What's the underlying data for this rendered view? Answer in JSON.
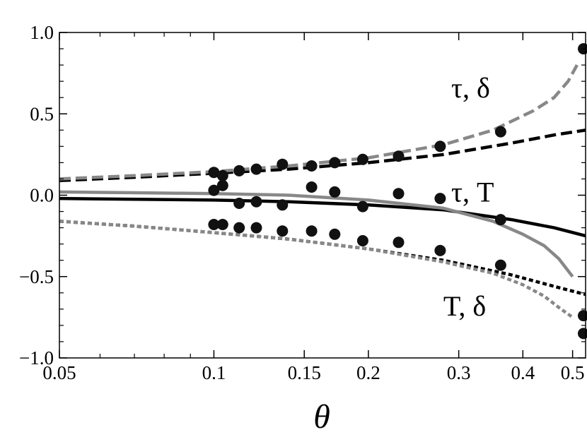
{
  "chart_data": {
    "type": "line",
    "xlabel": "θ",
    "ylabel": "",
    "xscale": "log",
    "xlim": [
      0.05,
      0.53
    ],
    "ylim": [
      -1.0,
      1.0
    ],
    "grid": false,
    "legend": "none",
    "x_ticks": [
      {
        "value": 0.05,
        "label": "0.05"
      },
      {
        "value": 0.1,
        "label": "0.1"
      },
      {
        "value": 0.15,
        "label": "0.15"
      },
      {
        "value": 0.2,
        "label": "0.2"
      },
      {
        "value": 0.3,
        "label": "0.3"
      },
      {
        "value": 0.4,
        "label": "0.4"
      },
      {
        "value": 0.5,
        "label": "0.5"
      }
    ],
    "y_ticks": [
      {
        "value": 1.0,
        "label": "1.0"
      },
      {
        "value": 0.5,
        "label": "0.5"
      },
      {
        "value": 0.0,
        "label": "0.0"
      },
      {
        "value": -0.5,
        "label": "−0.5"
      },
      {
        "value": -1.0,
        "label": "−1.0"
      }
    ],
    "annotations": [
      {
        "text": "τ, δ",
        "x": 0.29,
        "y": 0.6
      },
      {
        "text": "τ, T",
        "x": 0.29,
        "y": -0.04
      },
      {
        "text": "T, δ",
        "x": 0.28,
        "y": -0.74
      }
    ],
    "series": [
      {
        "group": "τ, δ",
        "style": "dashed",
        "color": "#000000",
        "x": [
          0.05,
          0.07,
          0.1,
          0.14,
          0.2,
          0.28,
          0.38,
          0.46,
          0.53
        ],
        "y": [
          0.09,
          0.11,
          0.135,
          0.16,
          0.2,
          0.25,
          0.32,
          0.37,
          0.4
        ]
      },
      {
        "group": "τ, δ",
        "style": "dashed",
        "color": "#888888",
        "x": [
          0.05,
          0.07,
          0.1,
          0.14,
          0.2,
          0.28,
          0.35,
          0.42,
          0.46,
          0.49,
          0.51
        ],
        "y": [
          0.1,
          0.12,
          0.145,
          0.18,
          0.23,
          0.31,
          0.4,
          0.52,
          0.6,
          0.7,
          0.8
        ]
      },
      {
        "group": "τ, T",
        "style": "solid",
        "color": "#000000",
        "x": [
          0.05,
          0.07,
          0.1,
          0.14,
          0.2,
          0.28,
          0.38,
          0.46,
          0.53
        ],
        "y": [
          -0.02,
          -0.025,
          -0.03,
          -0.04,
          -0.06,
          -0.09,
          -0.15,
          -0.2,
          -0.25
        ]
      },
      {
        "group": "τ, T",
        "style": "solid",
        "color": "#888888",
        "x": [
          0.05,
          0.07,
          0.1,
          0.14,
          0.2,
          0.28,
          0.35,
          0.4,
          0.44,
          0.47,
          0.5
        ],
        "y": [
          0.02,
          0.015,
          0.01,
          0.0,
          -0.03,
          -0.08,
          -0.16,
          -0.24,
          -0.31,
          -0.39,
          -0.5
        ]
      },
      {
        "group": "T, δ",
        "style": "dotted",
        "color": "#000000",
        "x": [
          0.05,
          0.07,
          0.1,
          0.14,
          0.2,
          0.28,
          0.38,
          0.46,
          0.53
        ],
        "y": [
          -0.16,
          -0.19,
          -0.23,
          -0.27,
          -0.33,
          -0.4,
          -0.49,
          -0.56,
          -0.61
        ]
      },
      {
        "group": "T, δ",
        "style": "dotted",
        "color": "#888888",
        "x": [
          0.05,
          0.07,
          0.1,
          0.14,
          0.2,
          0.28,
          0.35,
          0.4,
          0.44,
          0.47,
          0.5
        ],
        "y": [
          -0.16,
          -0.19,
          -0.23,
          -0.27,
          -0.33,
          -0.41,
          -0.48,
          -0.55,
          -0.62,
          -0.69,
          -0.75
        ]
      }
    ],
    "points": [
      {
        "x": 0.1,
        "y": 0.14
      },
      {
        "x": 0.104,
        "y": 0.12
      },
      {
        "x": 0.112,
        "y": 0.15
      },
      {
        "x": 0.121,
        "y": 0.16
      },
      {
        "x": 0.136,
        "y": 0.19
      },
      {
        "x": 0.155,
        "y": 0.18
      },
      {
        "x": 0.172,
        "y": 0.2
      },
      {
        "x": 0.195,
        "y": 0.22
      },
      {
        "x": 0.229,
        "y": 0.24
      },
      {
        "x": 0.276,
        "y": 0.3
      },
      {
        "x": 0.362,
        "y": 0.39
      },
      {
        "x": 0.525,
        "y": 0.9
      },
      {
        "x": 0.1,
        "y": 0.03
      },
      {
        "x": 0.104,
        "y": 0.06
      },
      {
        "x": 0.112,
        "y": -0.05
      },
      {
        "x": 0.121,
        "y": -0.04
      },
      {
        "x": 0.136,
        "y": -0.06
      },
      {
        "x": 0.155,
        "y": 0.05
      },
      {
        "x": 0.172,
        "y": 0.02
      },
      {
        "x": 0.195,
        "y": -0.07
      },
      {
        "x": 0.229,
        "y": 0.01
      },
      {
        "x": 0.276,
        "y": -0.02
      },
      {
        "x": 0.362,
        "y": -0.15
      },
      {
        "x": 0.525,
        "y": -0.74
      },
      {
        "x": 0.1,
        "y": -0.18
      },
      {
        "x": 0.104,
        "y": -0.18
      },
      {
        "x": 0.112,
        "y": -0.2
      },
      {
        "x": 0.121,
        "y": -0.2
      },
      {
        "x": 0.136,
        "y": -0.22
      },
      {
        "x": 0.155,
        "y": -0.22
      },
      {
        "x": 0.172,
        "y": -0.24
      },
      {
        "x": 0.195,
        "y": -0.28
      },
      {
        "x": 0.229,
        "y": -0.29
      },
      {
        "x": 0.276,
        "y": -0.34
      },
      {
        "x": 0.362,
        "y": -0.43
      },
      {
        "x": 0.525,
        "y": -0.85
      }
    ]
  }
}
